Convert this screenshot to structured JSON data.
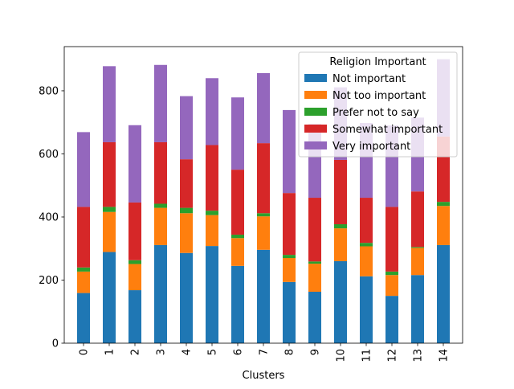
{
  "chart_data": {
    "type": "bar",
    "stacked": true,
    "categories": [
      "0",
      "1",
      "2",
      "3",
      "4",
      "5",
      "6",
      "7",
      "8",
      "9",
      "10",
      "11",
      "12",
      "13",
      "14"
    ],
    "xlabel": "Clusters",
    "ylabel": "",
    "ylim": [
      0,
      940
    ],
    "yticks": [
      0,
      200,
      400,
      600,
      800
    ],
    "grid": false,
    "legend": {
      "title": "Religion Important",
      "placement": "top-right"
    },
    "series": [
      {
        "name": "Not important",
        "color": "#1f77b4",
        "values": [
          159,
          289,
          168,
          311,
          286,
          308,
          245,
          296,
          194,
          163,
          260,
          212,
          150,
          216,
          311
        ]
      },
      {
        "name": "Not too important",
        "color": "#ff7f0e",
        "values": [
          68,
          127,
          83,
          118,
          126,
          98,
          88,
          106,
          76,
          89,
          104,
          95,
          66,
          86,
          124
        ]
      },
      {
        "name": "Prefer not to say",
        "color": "#2ca02c",
        "values": [
          13,
          16,
          12,
          13,
          17,
          14,
          11,
          10,
          10,
          7,
          13,
          11,
          11,
          3,
          13
        ]
      },
      {
        "name": "Somewhat important",
        "color": "#d62728",
        "values": [
          192,
          205,
          183,
          195,
          154,
          208,
          206,
          222,
          196,
          202,
          204,
          143,
          205,
          176,
          207
        ]
      },
      {
        "name": "Very important",
        "color": "#9467bd",
        "values": [
          237,
          241,
          245,
          245,
          200,
          212,
          229,
          222,
          263,
          234,
          230,
          237,
          258,
          234,
          245
        ]
      }
    ]
  }
}
